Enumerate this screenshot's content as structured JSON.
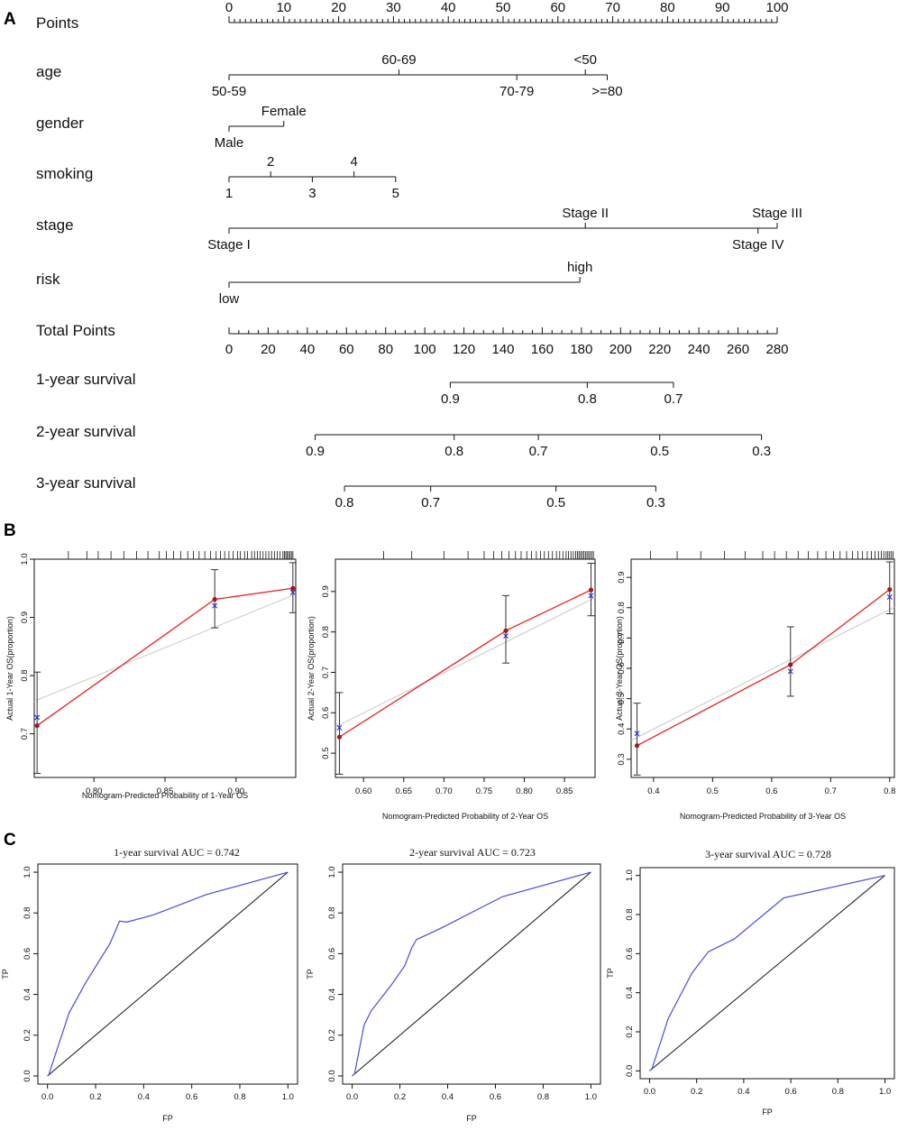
{
  "panels": {
    "a": "A",
    "b": "B",
    "c": "C"
  },
  "colors": {
    "model": "#e8201e",
    "ideal": "#c8c8c8",
    "corrected": "#2a2ad8",
    "roc": "#4a4ae0",
    "axis": "#111111"
  },
  "nomogram": {
    "points": {
      "label": "Points",
      "ticks": [
        "0",
        "10",
        "20",
        "30",
        "40",
        "50",
        "60",
        "70",
        "80",
        "90",
        "100"
      ],
      "min": 0,
      "max": 100
    },
    "variables": [
      {
        "key": "age",
        "label": "age",
        "levels": [
          {
            "label": "50-59",
            "points": 0,
            "side": "below"
          },
          {
            "label": "60-69",
            "points": 31,
            "side": "above"
          },
          {
            "label": "70-79",
            "points": 52.5,
            "side": "below"
          },
          {
            "label": "<50",
            "points": 65,
            "side": "above"
          },
          {
            "label": ">=80",
            "points": 69,
            "side": "below"
          }
        ]
      },
      {
        "key": "gender",
        "label": "gender",
        "levels": [
          {
            "label": "Male",
            "points": 0,
            "side": "below"
          },
          {
            "label": "Female",
            "points": 10,
            "side": "above"
          }
        ]
      },
      {
        "key": "smoking",
        "label": "smoking",
        "levels": [
          {
            "label": "1",
            "points": 0,
            "side": "below"
          },
          {
            "label": "2",
            "points": 7.6,
            "side": "above"
          },
          {
            "label": "3",
            "points": 15.2,
            "side": "below"
          },
          {
            "label": "4",
            "points": 22.8,
            "side": "above"
          },
          {
            "label": "5",
            "points": 30.4,
            "side": "below"
          }
        ]
      },
      {
        "key": "stage",
        "label": "stage",
        "levels": [
          {
            "label": "Stage I",
            "points": 0,
            "side": "below"
          },
          {
            "label": "Stage II",
            "points": 65,
            "side": "above"
          },
          {
            "label": "Stage IV",
            "points": 96.5,
            "side": "below"
          },
          {
            "label": "Stage III",
            "points": 100,
            "side": "above"
          }
        ]
      },
      {
        "key": "risk",
        "label": "risk",
        "levels": [
          {
            "label": "low",
            "points": 0,
            "side": "below"
          },
          {
            "label": "high",
            "points": 64,
            "side": "above"
          }
        ]
      }
    ],
    "total_points": {
      "label": "Total Points",
      "min": 0,
      "max": 280,
      "ticks": [
        "0",
        "20",
        "40",
        "60",
        "80",
        "100",
        "120",
        "140",
        "160",
        "180",
        "200",
        "220",
        "240",
        "260",
        "280"
      ]
    },
    "survival": [
      {
        "label": "1-year survival",
        "ticks": [
          {
            "label": "0.9",
            "total": 113
          },
          {
            "label": "0.8",
            "total": 183
          },
          {
            "label": "0.7",
            "total": 227
          }
        ]
      },
      {
        "label": "2-year survival",
        "ticks": [
          {
            "label": "0.9",
            "total": 44
          },
          {
            "label": "0.8",
            "total": 115
          },
          {
            "label": "0.7",
            "total": 158
          },
          {
            "label": "0.5",
            "total": 220
          },
          {
            "label": "0.3",
            "total": 272
          }
        ]
      },
      {
        "label": "3-year survival",
        "ticks": [
          {
            "label": "0.8",
            "total": 59
          },
          {
            "label": "0.7",
            "total": 103
          },
          {
            "label": "0.5",
            "total": 167
          },
          {
            "label": "0.3",
            "total": 218
          }
        ]
      }
    ]
  },
  "chart_data": [
    {
      "type": "scatter",
      "subtype": "calibration",
      "xlabel": "Nomogram-Predicted Probability of 1-Year OS",
      "ylabel": "Actual 1-Year OS(proportion)",
      "xlim": [
        0.758,
        0.942
      ],
      "ylim": [
        0.625,
        1.0
      ],
      "xticks": [
        0.8,
        0.85,
        0.9
      ],
      "xtick_labels": [
        "0.80",
        "0.85",
        "0.90"
      ],
      "yticks": [
        0.7,
        0.8,
        0.9,
        1.0
      ],
      "ytick_labels": [
        "0.7",
        "0.8",
        "0.9",
        "1.0"
      ],
      "rug": [
        0.782,
        0.795,
        0.803,
        0.812,
        0.821,
        0.83,
        0.838,
        0.846,
        0.851,
        0.856,
        0.861,
        0.866,
        0.87,
        0.874,
        0.878,
        0.882,
        0.886,
        0.889,
        0.892,
        0.895,
        0.898,
        0.901,
        0.903,
        0.906,
        0.908,
        0.911,
        0.913,
        0.915,
        0.917,
        0.919,
        0.921,
        0.923,
        0.925,
        0.927,
        0.929,
        0.931,
        0.933,
        0.934,
        0.935,
        0.936,
        0.937,
        0.938,
        0.939,
        0.94
      ],
      "points": [
        {
          "x": 0.76,
          "y": 0.714,
          "lo": 0.632,
          "hi": 0.806,
          "corrected": 0.728
        },
        {
          "x": 0.885,
          "y": 0.931,
          "lo": 0.882,
          "hi": 0.982,
          "corrected": 0.92
        },
        {
          "x": 0.94,
          "y": 0.95,
          "lo": 0.908,
          "hi": 0.994,
          "corrected": 0.943
        }
      ],
      "ideal_line": [
        [
          0.758,
          0.756
        ],
        [
          0.942,
          0.94
        ]
      ]
    },
    {
      "type": "scatter",
      "subtype": "calibration",
      "xlabel": "Nomogram-Predicted Probability of 2-Year OS",
      "ylabel": "Actual 2-Year OS(proportion)",
      "xlim": [
        0.565,
        0.888
      ],
      "ylim": [
        0.44,
        0.98
      ],
      "xticks": [
        0.6,
        0.65,
        0.7,
        0.75,
        0.8,
        0.85
      ],
      "xtick_labels": [
        "0.60",
        "0.65",
        "0.70",
        "0.75",
        "0.80",
        "0.85"
      ],
      "yticks": [
        0.5,
        0.6,
        0.7,
        0.8,
        0.9
      ],
      "ytick_labels": [
        "0.5",
        "0.6",
        "0.7",
        "0.8",
        "0.9"
      ],
      "rug": [
        0.625,
        0.66,
        0.7,
        0.73,
        0.75,
        0.762,
        0.772,
        0.781,
        0.789,
        0.796,
        0.803,
        0.809,
        0.815,
        0.82,
        0.825,
        0.83,
        0.835,
        0.84,
        0.844,
        0.848,
        0.852,
        0.855,
        0.858,
        0.861,
        0.864,
        0.866,
        0.868,
        0.87,
        0.872,
        0.874,
        0.876,
        0.878,
        0.88,
        0.882,
        0.884,
        0.886
      ],
      "points": [
        {
          "x": 0.57,
          "y": 0.54,
          "lo": 0.448,
          "hi": 0.65,
          "corrected": 0.563
        },
        {
          "x": 0.777,
          "y": 0.803,
          "lo": 0.723,
          "hi": 0.89,
          "corrected": 0.79
        },
        {
          "x": 0.883,
          "y": 0.904,
          "lo": 0.84,
          "hi": 0.97,
          "corrected": 0.89
        }
      ],
      "ideal_line": [
        [
          0.565,
          0.565
        ],
        [
          0.888,
          0.885
        ]
      ]
    },
    {
      "type": "scatter",
      "subtype": "calibration",
      "xlabel": "Nomogram-Predicted Probability of 3-Year OS",
      "ylabel": "Actual 3-Year OS(proportion)",
      "xlim": [
        0.362,
        0.808
      ],
      "ylim": [
        0.24,
        0.96
      ],
      "xticks": [
        0.4,
        0.5,
        0.6,
        0.7,
        0.8
      ],
      "xtick_labels": [
        "0.4",
        "0.5",
        "0.6",
        "0.7",
        "0.8"
      ],
      "yticks": [
        0.3,
        0.4,
        0.5,
        0.6,
        0.7,
        0.8,
        0.9
      ],
      "ytick_labels": [
        "0.3",
        "0.4",
        "0.5",
        "0.6",
        "0.7",
        "0.8",
        "0.9"
      ],
      "rug": [
        0.395,
        0.44,
        0.48,
        0.52,
        0.555,
        0.585,
        0.605,
        0.625,
        0.645,
        0.662,
        0.678,
        0.692,
        0.705,
        0.716,
        0.727,
        0.737,
        0.746,
        0.754,
        0.762,
        0.769,
        0.775,
        0.781,
        0.786,
        0.79,
        0.794,
        0.797,
        0.8,
        0.803,
        0.806
      ],
      "points": [
        {
          "x": 0.372,
          "y": 0.345,
          "lo": 0.248,
          "hi": 0.485,
          "corrected": 0.385
        },
        {
          "x": 0.632,
          "y": 0.612,
          "lo": 0.508,
          "hi": 0.737,
          "corrected": 0.59
        },
        {
          "x": 0.8,
          "y": 0.86,
          "lo": 0.78,
          "hi": 0.951,
          "corrected": 0.835
        }
      ],
      "ideal_line": [
        [
          0.362,
          0.362
        ],
        [
          0.808,
          0.802
        ]
      ]
    },
    {
      "type": "line",
      "subtype": "roc",
      "title": "1-year survival AUC = 0.742",
      "xlabel": "FP",
      "ylabel": "TP",
      "xlim": [
        -0.04,
        1.04
      ],
      "ylim": [
        -0.04,
        1.04
      ],
      "ticks": [
        0.0,
        0.2,
        0.4,
        0.6,
        0.8,
        1.0
      ],
      "tick_labels": [
        "0.0",
        "0.2",
        "0.4",
        "0.6",
        "0.8",
        "1.0"
      ],
      "x": [
        0,
        0.005,
        0.09,
        0.16,
        0.26,
        0.3,
        0.33,
        0.44,
        0.66,
        1.0
      ],
      "y": [
        0,
        0.005,
        0.31,
        0.46,
        0.65,
        0.76,
        0.755,
        0.79,
        0.89,
        1.0
      ]
    },
    {
      "type": "line",
      "subtype": "roc",
      "title": "2-year survival AUC = 0.723",
      "xlabel": "FP",
      "ylabel": "TP",
      "xlim": [
        -0.04,
        1.04
      ],
      "ylim": [
        -0.04,
        1.04
      ],
      "ticks": [
        0.0,
        0.2,
        0.4,
        0.6,
        0.8,
        1.0
      ],
      "tick_labels": [
        "0.0",
        "0.2",
        "0.4",
        "0.6",
        "0.8",
        "1.0"
      ],
      "x": [
        0,
        0.01,
        0.05,
        0.08,
        0.16,
        0.22,
        0.25,
        0.27,
        0.29,
        0.38,
        0.63,
        1.0
      ],
      "y": [
        0,
        0.01,
        0.25,
        0.32,
        0.44,
        0.54,
        0.63,
        0.67,
        0.68,
        0.73,
        0.88,
        1.0
      ]
    },
    {
      "type": "line",
      "subtype": "roc",
      "title": "3-year survival AUC = 0.728",
      "xlabel": "FP",
      "ylabel": "TP",
      "xlim": [
        -0.04,
        1.04
      ],
      "ylim": [
        -0.04,
        1.04
      ],
      "ticks": [
        0.0,
        0.2,
        0.4,
        0.6,
        0.8,
        1.0
      ],
      "tick_labels": [
        "0.0",
        "0.2",
        "0.4",
        "0.6",
        "0.8",
        "1.0"
      ],
      "x": [
        0,
        0.01,
        0.08,
        0.18,
        0.25,
        0.36,
        0.57,
        1.0
      ],
      "y": [
        0,
        0.01,
        0.27,
        0.5,
        0.61,
        0.675,
        0.885,
        1.0
      ]
    }
  ]
}
